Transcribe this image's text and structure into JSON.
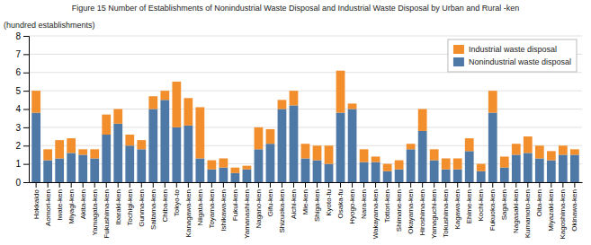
{
  "chart_data": {
    "type": "bar",
    "stacked": true,
    "title": "Figure 15  Number of Establishments of Nonindustrial Waste Disposal and Industrial Waste Disposal by Urban and Rural -ken",
    "ylabel": "(hundred establishments)",
    "categories": [
      "Hokkaido",
      "Aomori-ken",
      "Iwate-ken",
      "Miyagi-ken",
      "Akita-ken",
      "Yamagata-ken",
      "Fukushima-ken",
      "Ibaraki-ken",
      "Tochigi-ken",
      "Gunma-ken",
      "Saitama-ken",
      "Chiba-ken",
      "Tokyo-to",
      "Kanagawa-ken",
      "Niigata-ken",
      "Toyama-ken",
      "Ishikawa-ken",
      "Fukui-ken",
      "Yamanashi-ken",
      "Nagano-ken",
      "Gifu-ken",
      "Shizuoka-ken",
      "Aichi-ken",
      "Mie-ken",
      "Shiga-ken",
      "Kyoto-fu",
      "Osaka-fu",
      "Hyogo-ken",
      "Nara-ken",
      "Wakayama-ken",
      "Tottori-ken",
      "Shimane-ken",
      "Okayama-ken",
      "Hiroshima-ken",
      "Yamaguchi-ken",
      "Tokushima-ken",
      "Kagawa-ken",
      "Ehime-ken",
      "Kochi-ken",
      "Fukuoka-ken",
      "Saga-ken",
      "Nagasaki-ken",
      "Kumamoto-ken",
      "Oita-ken",
      "Miyazaki-ken",
      "Kagoshima-ken",
      "Okinawa-ken"
    ],
    "series": [
      {
        "name": "Nonindustrial waste disposal",
        "values": [
          3.8,
          1.2,
          1.3,
          1.6,
          1.5,
          1.3,
          2.6,
          3.2,
          2.0,
          1.8,
          4.0,
          4.5,
          3.0,
          3.1,
          1.3,
          0.7,
          0.8,
          0.5,
          0.7,
          1.8,
          2.1,
          4.0,
          4.2,
          1.3,
          1.2,
          1.0,
          3.8,
          4.0,
          1.1,
          1.1,
          0.6,
          0.7,
          1.8,
          2.8,
          1.2,
          0.7,
          0.7,
          1.7,
          0.6,
          3.8,
          0.8,
          1.5,
          1.6,
          1.3,
          1.2,
          1.5,
          1.5
        ]
      },
      {
        "name": "Industrial waste disposal",
        "values": [
          1.2,
          0.6,
          1.0,
          0.8,
          0.3,
          0.5,
          1.1,
          0.8,
          0.6,
          0.5,
          0.7,
          0.5,
          2.5,
          1.5,
          2.8,
          0.5,
          0.5,
          0.3,
          0.2,
          1.2,
          0.8,
          0.5,
          0.8,
          0.8,
          0.8,
          1.0,
          2.3,
          0.3,
          0.7,
          0.3,
          0.4,
          0.5,
          0.3,
          1.2,
          0.6,
          0.6,
          0.6,
          0.7,
          0.4,
          1.2,
          0.6,
          0.6,
          0.9,
          0.7,
          0.5,
          0.5,
          0.3
        ]
      }
    ],
    "ylim": [
      0,
      8
    ],
    "yticks": [
      0,
      1,
      2,
      3,
      4,
      5,
      6,
      7,
      8
    ],
    "grid": true,
    "legend": "upper right"
  }
}
